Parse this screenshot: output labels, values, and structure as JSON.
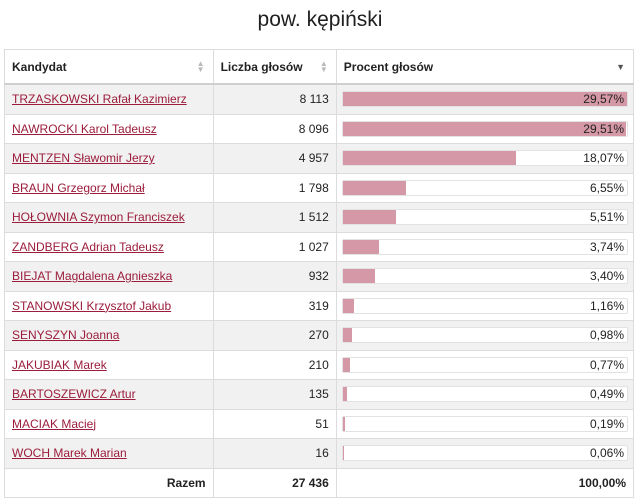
{
  "title": "pow. kępiński",
  "table": {
    "headers": {
      "candidate": "Kandydat",
      "votes": "Liczba głosów",
      "percent": "Procent głosów"
    },
    "rows": [
      {
        "name": "TRZASKOWSKI Rafał Kazimierz",
        "votes": "8 113",
        "percent": "29,57%",
        "fraction": 0.2957
      },
      {
        "name": "NAWROCKI Karol Tadeusz",
        "votes": "8 096",
        "percent": "29,51%",
        "fraction": 0.2951
      },
      {
        "name": "MENTZEN Sławomir Jerzy",
        "votes": "4 957",
        "percent": "18,07%",
        "fraction": 0.1807
      },
      {
        "name": "BRAUN Grzegorz Michał",
        "votes": "1 798",
        "percent": "6,55%",
        "fraction": 0.0655
      },
      {
        "name": "HOŁOWNIA Szymon Franciszek",
        "votes": "1 512",
        "percent": "5,51%",
        "fraction": 0.0551
      },
      {
        "name": "ZANDBERG Adrian Tadeusz",
        "votes": "1 027",
        "percent": "3,74%",
        "fraction": 0.0374
      },
      {
        "name": "BIEJAT Magdalena Agnieszka",
        "votes": "932",
        "percent": "3,40%",
        "fraction": 0.034
      },
      {
        "name": "STANOWSKI Krzysztof Jakub",
        "votes": "319",
        "percent": "1,16%",
        "fraction": 0.0116
      },
      {
        "name": "SENYSZYN Joanna",
        "votes": "270",
        "percent": "0,98%",
        "fraction": 0.0098
      },
      {
        "name": "JAKUBIAK Marek",
        "votes": "210",
        "percent": "0,77%",
        "fraction": 0.0077
      },
      {
        "name": "BARTOSZEWICZ Artur",
        "votes": "135",
        "percent": "0,49%",
        "fraction": 0.0049
      },
      {
        "name": "MACIAK Maciej",
        "votes": "51",
        "percent": "0,19%",
        "fraction": 0.0019
      },
      {
        "name": "WOCH Marek Marian",
        "votes": "16",
        "percent": "0,06%",
        "fraction": 0.0006
      }
    ],
    "footer": {
      "label": "Razem",
      "votes": "27 436",
      "percent": "100,00%"
    },
    "bar_max_fraction": 0.2957,
    "colors": {
      "bar": "#d598a6",
      "link": "#9b1c3b"
    }
  }
}
